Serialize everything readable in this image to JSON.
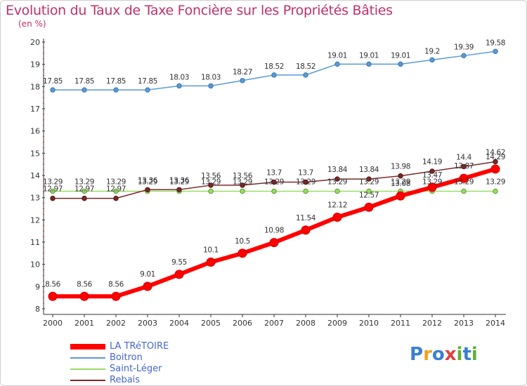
{
  "title": "Evolution du Taux de Taxe Foncière sur les Propriétés Bâties",
  "subtitle": "(en %)",
  "logo": {
    "text": "Proxiti",
    "letter_colors": [
      "#3a7fd0",
      "#f0a020",
      "#3a7fd0",
      "#e04040",
      "#60b030",
      "#3a7fd0",
      "#60b030"
    ]
  },
  "chart_data": {
    "type": "line",
    "title": "Evolution du Taux de Taxe Foncière sur les Propriétés Bâties",
    "ylabel": "(en %)",
    "xlabel": "",
    "ylim": [
      8,
      20
    ],
    "y_ticks": [
      "8",
      "9",
      "10",
      "11",
      "12",
      "13",
      "14",
      "15",
      "16",
      "17",
      "18",
      "19",
      "20"
    ],
    "categories": [
      "2000",
      "2001",
      "2002",
      "2003",
      "2004",
      "2005",
      "2006",
      "2007",
      "2008",
      "2009",
      "2010",
      "2011",
      "2012",
      "2013",
      "2014"
    ],
    "grid": false,
    "legend_position": "bottom-left",
    "series": [
      {
        "name": "LA TRéTOIRE",
        "color": "#ff0000",
        "values": [
          8.56,
          8.56,
          8.56,
          9.01,
          9.55,
          10.1,
          10.5,
          10.98,
          11.54,
          12.12,
          12.57,
          13.08,
          13.47,
          13.87,
          14.29
        ],
        "labels": [
          "8.56",
          "8.56",
          "8.56",
          "9.01",
          "9.55",
          "10.1",
          "10.5",
          "10.98",
          "11.54",
          "12.12",
          "12.57",
          "13.08",
          "13.47",
          "13.87",
          "14.29"
        ]
      },
      {
        "name": "Boitron",
        "color": "#5a9ad5",
        "values": [
          17.85,
          17.85,
          17.85,
          17.85,
          18.03,
          18.03,
          18.27,
          18.52,
          18.52,
          19.01,
          19.01,
          19.01,
          19.2,
          19.39,
          19.58
        ],
        "labels": [
          "17.85",
          "17.85",
          "17.85",
          "17.85",
          "18.03",
          "18.03",
          "18.27",
          "18.52",
          "18.52",
          "19.01",
          "19.01",
          "19.01",
          "19.2",
          "19.39",
          "19.58"
        ]
      },
      {
        "name": "Saint-Léger",
        "color": "#99dd66",
        "values": [
          13.29,
          13.29,
          13.29,
          13.29,
          13.29,
          13.29,
          13.29,
          13.29,
          13.29,
          13.29,
          13.29,
          13.29,
          13.29,
          13.29,
          13.29
        ],
        "labels": [
          "13.29",
          "13.29",
          "13.29",
          "13.29",
          "13.29",
          "13.29",
          "13.29",
          "13.29",
          "13.29",
          "13.29",
          "13.29",
          "13.29",
          "13.29",
          "13.29",
          "13.29"
        ]
      },
      {
        "name": "Rebais",
        "color": "#7a2a2a",
        "values": [
          12.97,
          12.97,
          12.97,
          13.36,
          13.36,
          13.56,
          13.56,
          13.7,
          13.7,
          13.84,
          13.84,
          13.98,
          14.19,
          14.4,
          14.62
        ],
        "labels": [
          "12.97",
          "12.97",
          "12.97",
          "13.36",
          "13.36",
          "13.56",
          "13.56",
          "13.7",
          "13.7",
          "13.84",
          "13.84",
          "13.98",
          "14.19",
          "14.4",
          "14.62"
        ]
      }
    ]
  }
}
